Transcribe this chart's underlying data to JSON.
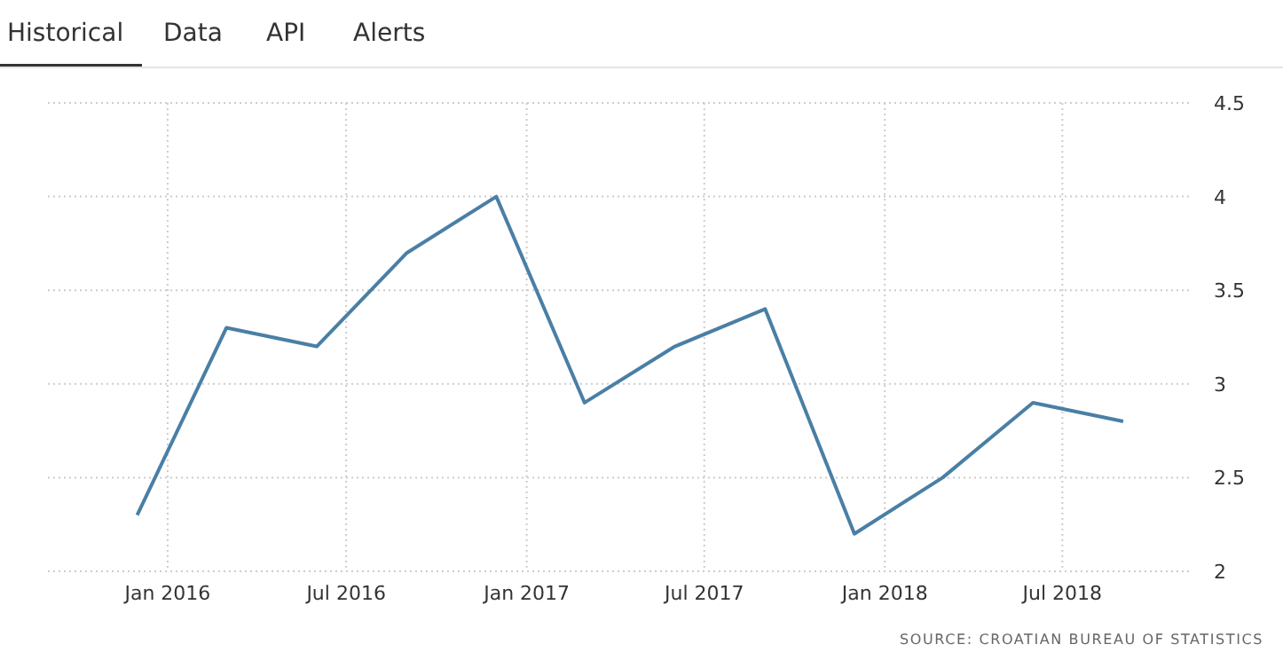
{
  "chart_data": {
    "type": "line",
    "annotations": [
      "Historical",
      "Data",
      "API",
      "Alerts",
      "SOURCE: CROATIAN BUREAU OF STATISTICS"
    ],
    "x": [
      "2015-12",
      "2016-03",
      "2016-06",
      "2016-09",
      "2016-12",
      "2017-03",
      "2017-06",
      "2017-09",
      "2017-12",
      "2018-03",
      "2018-06",
      "2018-09"
    ],
    "series": [
      {
        "color": "#4a7fa5",
        "values": [
          2.3,
          3.3,
          3.2,
          3.7,
          4.0,
          2.9,
          3.2,
          3.4,
          2.2,
          2.5,
          2.9,
          2.8
        ]
      }
    ],
    "xlim": [
      "2015-09-01",
      "2018-11-07"
    ],
    "xticks": [
      {
        "value": "2016-01",
        "label": "Jan 2016"
      },
      {
        "value": "2016-07",
        "label": "Jul 2016"
      },
      {
        "value": "2017-01",
        "label": "Jan 2017"
      },
      {
        "value": "2017-07",
        "label": "Jul 2017"
      },
      {
        "value": "2018-01",
        "label": "Jan 2018"
      },
      {
        "value": "2018-07",
        "label": "Jul 2018"
      }
    ],
    "ylim": [
      2,
      4.5
    ],
    "yticks": [
      2,
      2.5,
      3,
      3.5,
      4,
      4.5
    ],
    "grid": true,
    "marker": "none",
    "line_style": "solid"
  }
}
